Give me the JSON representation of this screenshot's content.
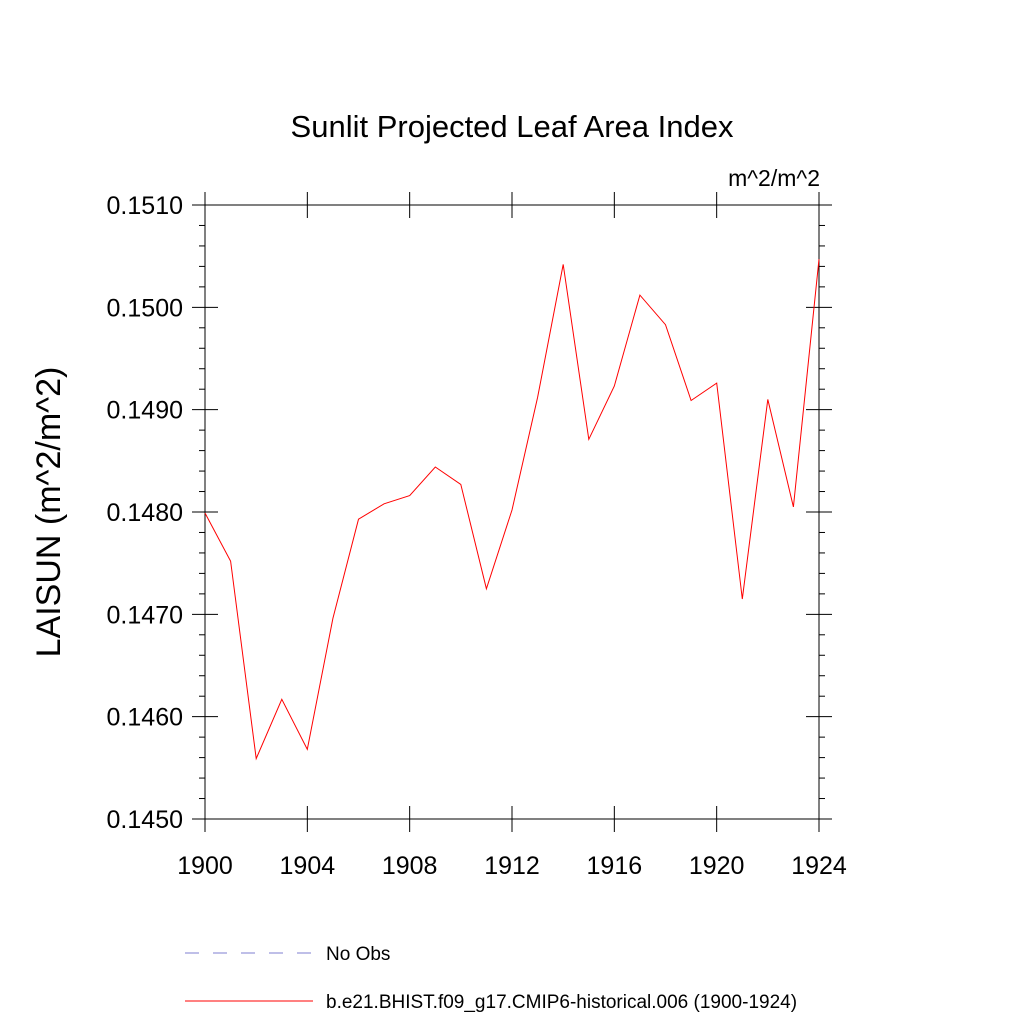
{
  "chart_data": {
    "type": "line",
    "title": "Sunlit Projected Leaf Area Index",
    "units_label": "m^2/m^2",
    "xlabel": "",
    "ylabel": "LAISUN  (m^2/m^2)",
    "xlim": [
      1900,
      1924
    ],
    "ylim": [
      0.145,
      0.151
    ],
    "xticks": [
      1900,
      1904,
      1908,
      1912,
      1916,
      1920,
      1924
    ],
    "xtick_labels": [
      "1900",
      "1904",
      "1908",
      "1912",
      "1916",
      "1920",
      "1924"
    ],
    "yticks": [
      0.145,
      0.146,
      0.147,
      0.148,
      0.149,
      0.15,
      0.151
    ],
    "ytick_labels": [
      "0.1450",
      "0.1460",
      "0.1470",
      "0.1480",
      "0.1490",
      "0.1500",
      "0.1510"
    ],
    "grid": false,
    "legend_position": "bottom",
    "series": [
      {
        "name": "b.e21.BHIST.f09_g17.CMIP6-historical.006 (1900-1924)",
        "color": "#ff0000",
        "style": "solid",
        "x": [
          1900,
          1901,
          1902,
          1903,
          1904,
          1905,
          1906,
          1907,
          1908,
          1909,
          1910,
          1911,
          1912,
          1913,
          1914,
          1915,
          1916,
          1917,
          1918,
          1919,
          1920,
          1921,
          1922,
          1923,
          1924
        ],
        "y": [
          0.14799,
          0.14752,
          0.14559,
          0.14617,
          0.14568,
          0.14696,
          0.14793,
          0.14808,
          0.14816,
          0.14844,
          0.14827,
          0.14725,
          0.14802,
          0.14912,
          0.15042,
          0.14871,
          0.14923,
          0.15012,
          0.14983,
          0.14909,
          0.14926,
          0.14715,
          0.1491,
          0.14805,
          0.15047
        ]
      }
    ],
    "legend": [
      {
        "label": "No Obs",
        "color": "#7f7fd0",
        "style": "dashed"
      },
      {
        "label": "b.e21.BHIST.f09_g17.CMIP6-historical.006 (1900-1924)",
        "color": "#ff0000",
        "style": "solid"
      }
    ]
  }
}
